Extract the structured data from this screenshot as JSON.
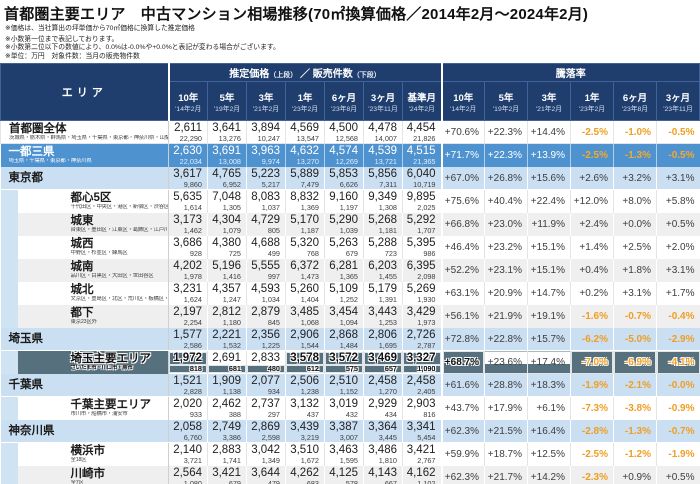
{
  "title": "首都圏主要エリア　中古マンション相場推移(70㎡換算価格／2014年2月～2024年2月)",
  "notes": [
    "※価格は、当社算出の坪単価から70㎡価格に換算した推定価格",
    "※小数第一位まで表記しております。",
    "※小数第二位以下の数値により、0.0%は-0.0%や+0.0%と表記が変わる場合がございます。",
    "※単位：万円　対象件数：当月の販売物件数"
  ],
  "colors": {
    "header_navy": "#1f3e6e",
    "band_blue": "#4e92d0",
    "pref_light_blue": "#cbdff2",
    "alt_gray": "#efefef",
    "negative_orange": "#ef9e23",
    "highlight_dark": "#56707e"
  },
  "chart_data": {
    "type": "table",
    "title": "首都圏主要エリア　中古マンション相場推移(70㎡換算価格／2014年2月～2024年2月)",
    "header": {
      "area": "エリア",
      "price_group": {
        "a": "推定価格",
        "a_note": "（上段）",
        "sep": "／",
        "b": "販売件数",
        "b_note": "（下段）"
      },
      "rate_group": "騰落率",
      "price_cols": [
        {
          "label": "10年",
          "date": "'14年2月"
        },
        {
          "label": "5年",
          "date": "'19年2月"
        },
        {
          "label": "3年",
          "date": "'21年2月"
        },
        {
          "label": "1年",
          "date": "'23年2月"
        },
        {
          "label": "6ヶ月",
          "date": "'23年8月"
        },
        {
          "label": "3ヶ月",
          "date": "'23年11月"
        },
        {
          "label": "基準月",
          "date": "'24年2月"
        }
      ],
      "rate_cols": [
        {
          "label": "10年",
          "date": "'14年2月"
        },
        {
          "label": "5年",
          "date": "'19年2月"
        },
        {
          "label": "3年",
          "date": "'21年2月"
        },
        {
          "label": "1年",
          "date": "'23年2月"
        },
        {
          "label": "6ヶ月",
          "date": "'23年8月"
        },
        {
          "label": "3ヶ月",
          "date": "'23年11月"
        }
      ]
    },
    "rows": [
      {
        "name": "首都圏全体",
        "sub": "茨城県・栃木県・群馬県・埼玉県・千葉県・東京都・神奈川県・山梨県",
        "style": "plain",
        "prices": [
          "2,611",
          "3,641",
          "3,894",
          "4,569",
          "4,500",
          "4,478",
          "4,454"
        ],
        "counts": [
          "22,290",
          "13,276",
          "10,247",
          "13,547",
          "12,568",
          "14,007",
          "21,826"
        ],
        "rates": [
          "+70.6%",
          "+22.3%",
          "+14.4%",
          "-2.5%",
          "-1.0%",
          "-0.5%"
        ]
      },
      {
        "name": "一都三県",
        "sub": "埼玉県・千葉県・東京都・神奈川県",
        "style": "band",
        "prices": [
          "2,630",
          "3,691",
          "3,963",
          "4,632",
          "4,574",
          "4,539",
          "4,515"
        ],
        "counts": [
          "22,034",
          "13,008",
          "9,974",
          "13,270",
          "12,269",
          "13,721",
          "21,365"
        ],
        "rates": [
          "+71.7%",
          "+22.3%",
          "+13.9%",
          "-2.5%",
          "-1.3%",
          "-0.5%"
        ]
      },
      {
        "name": "東京都",
        "sub": "",
        "style": "pref",
        "prices": [
          "3,617",
          "4,765",
          "5,223",
          "5,889",
          "5,853",
          "5,856",
          "6,040"
        ],
        "counts": [
          "9,860",
          "6,952",
          "5,217",
          "7,479",
          "6,626",
          "7,311",
          "10,719"
        ],
        "rates": [
          "+67.0%",
          "+26.8%",
          "+15.6%",
          "+2.6%",
          "+3.2%",
          "+3.1%"
        ]
      },
      {
        "name": "都心5区",
        "sub": "千代田区・中央区・港区・新宿区・渋谷区",
        "style": "sub-white",
        "prices": [
          "5,635",
          "7,048",
          "8,083",
          "8,832",
          "9,160",
          "9,349",
          "9,895"
        ],
        "counts": [
          "1,614",
          "1,305",
          "1,037",
          "1,369",
          "1,197",
          "1,308",
          "2,025"
        ],
        "rates": [
          "+75.6%",
          "+40.4%",
          "+22.4%",
          "+12.0%",
          "+8.0%",
          "+5.8%"
        ]
      },
      {
        "name": "城東",
        "sub": "台東区・墨田区・江東区・葛飾区・江戸川区",
        "style": "sub-gray",
        "prices": [
          "3,173",
          "4,304",
          "4,729",
          "5,170",
          "5,290",
          "5,268",
          "5,292"
        ],
        "counts": [
          "1,462",
          "1,079",
          "805",
          "1,187",
          "1,039",
          "1,181",
          "1,707"
        ],
        "rates": [
          "+66.8%",
          "+23.0%",
          "+11.9%",
          "+2.4%",
          "+0.0%",
          "+0.5%"
        ]
      },
      {
        "name": "城西",
        "sub": "中野区・杉並区・練馬区",
        "style": "sub-white",
        "prices": [
          "3,686",
          "4,380",
          "4,688",
          "5,320",
          "5,263",
          "5,288",
          "5,395"
        ],
        "counts": [
          "928",
          "725",
          "499",
          "768",
          "679",
          "723",
          "986"
        ],
        "rates": [
          "+46.4%",
          "+23.2%",
          "+15.1%",
          "+1.4%",
          "+2.5%",
          "+2.0%"
        ]
      },
      {
        "name": "城南",
        "sub": "品川区・目黒区・大田区・世田谷区",
        "style": "sub-gray",
        "prices": [
          "4,202",
          "5,196",
          "5,555",
          "6,372",
          "6,281",
          "6,203",
          "6,395"
        ],
        "counts": [
          "1,978",
          "1,416",
          "997",
          "1,473",
          "1,365",
          "1,455",
          "2,098"
        ],
        "rates": [
          "+52.2%",
          "+23.1%",
          "+15.1%",
          "+0.4%",
          "+1.8%",
          "+3.1%"
        ]
      },
      {
        "name": "城北",
        "sub": "文京区・豊島区・北区・荒川区・板橋区・足立区",
        "style": "sub-white",
        "prices": [
          "3,231",
          "4,357",
          "4,593",
          "5,260",
          "5,109",
          "5,179",
          "5,269"
        ],
        "counts": [
          "1,624",
          "1,247",
          "1,034",
          "1,404",
          "1,252",
          "1,391",
          "1,930"
        ],
        "rates": [
          "+63.1%",
          "+20.9%",
          "+14.7%",
          "+0.2%",
          "+3.1%",
          "+1.7%"
        ]
      },
      {
        "name": "都下",
        "sub": "東京23区外",
        "style": "sub-gray",
        "prices": [
          "2,197",
          "2,812",
          "2,879",
          "3,485",
          "3,454",
          "3,443",
          "3,429"
        ],
        "counts": [
          "2,254",
          "1,180",
          "845",
          "1,068",
          "1,094",
          "1,253",
          "1,973"
        ],
        "rates": [
          "+56.1%",
          "+21.9%",
          "+19.1%",
          "-1.6%",
          "-0.7%",
          "-0.4%"
        ]
      },
      {
        "name": "埼玉県",
        "sub": "",
        "style": "pref",
        "prices": [
          "1,577",
          "2,221",
          "2,356",
          "2,906",
          "2,868",
          "2,806",
          "2,726"
        ],
        "counts": [
          "2,586",
          "1,532",
          "1,225",
          "1,544",
          "1,484",
          "1,695",
          "2,787"
        ],
        "rates": [
          "+72.8%",
          "+22.8%",
          "+15.7%",
          "-6.2%",
          "-5.0%",
          "-2.9%"
        ]
      },
      {
        "name": "埼玉主要エリア",
        "sub": "さいたま市・川口市・蕨市",
        "style": "sub-white",
        "selected": true,
        "highlight": {
          "prices": [
            0,
            3,
            4,
            5,
            6
          ],
          "counts": [
            0,
            1,
            2,
            3,
            4,
            5,
            6
          ],
          "rates": [
            0,
            3,
            4,
            5
          ],
          "rates_half": [
            1,
            2
          ]
        },
        "prices": [
          "1,972",
          "2,691",
          "2,833",
          "3,578",
          "3,572",
          "3,469",
          "3,327"
        ],
        "counts": [
          "818",
          "681",
          "480",
          "612",
          "575",
          "657",
          "1,090"
        ],
        "rates": [
          "+68.7%",
          "+23.6%",
          "+17.4%",
          "-7.0%",
          "-6.9%",
          "-4.1%"
        ]
      },
      {
        "name": "千葉県",
        "sub": "",
        "style": "pref",
        "prices": [
          "1,521",
          "1,909",
          "2,077",
          "2,506",
          "2,510",
          "2,458",
          "2,458"
        ],
        "counts": [
          "2,828",
          "1,138",
          "934",
          "1,238",
          "1,152",
          "1,270",
          "2,405"
        ],
        "rates": [
          "+61.6%",
          "+28.8%",
          "+18.3%",
          "-1.9%",
          "-2.1%",
          "-0.0%"
        ]
      },
      {
        "name": "千葉主要エリア",
        "sub": "市川市・船橋市・浦安市",
        "style": "sub-white",
        "prices": [
          "2,020",
          "2,462",
          "2,737",
          "3,132",
          "3,019",
          "2,929",
          "2,903"
        ],
        "counts": [
          "933",
          "388",
          "297",
          "437",
          "432",
          "434",
          "816"
        ],
        "rates": [
          "+43.7%",
          "+17.9%",
          "+6.1%",
          "-7.3%",
          "-3.8%",
          "-0.9%"
        ]
      },
      {
        "name": "神奈川県",
        "sub": "",
        "style": "pref",
        "prices": [
          "2,058",
          "2,749",
          "2,869",
          "3,439",
          "3,387",
          "3,364",
          "3,341"
        ],
        "counts": [
          "6,760",
          "3,386",
          "2,598",
          "3,219",
          "3,007",
          "3,445",
          "5,454"
        ],
        "rates": [
          "+62.3%",
          "+21.5%",
          "+16.4%",
          "-2.8%",
          "-1.3%",
          "-0.7%"
        ]
      },
      {
        "name": "横浜市",
        "sub": "全18区",
        "style": "sub-white",
        "prices": [
          "2,140",
          "2,883",
          "3,042",
          "3,510",
          "3,463",
          "3,486",
          "3,421"
        ],
        "counts": [
          "3,721",
          "1,741",
          "1,349",
          "1,672",
          "1,595",
          "1,810",
          "2,767"
        ],
        "rates": [
          "+59.9%",
          "+18.7%",
          "+12.5%",
          "-2.5%",
          "-1.2%",
          "-1.9%"
        ]
      },
      {
        "name": "川崎市",
        "sub": "全7区",
        "style": "sub-gray",
        "prices": [
          "2,564",
          "3,421",
          "3,644",
          "4,262",
          "4,125",
          "4,143",
          "4,162"
        ],
        "counts": [
          "1,080",
          "679",
          "479",
          "683",
          "578",
          "667",
          "1,102"
        ],
        "rates": [
          "+62.3%",
          "+21.7%",
          "+14.2%",
          "-2.3%",
          "+0.9%",
          "+0.5%"
        ]
      }
    ]
  }
}
